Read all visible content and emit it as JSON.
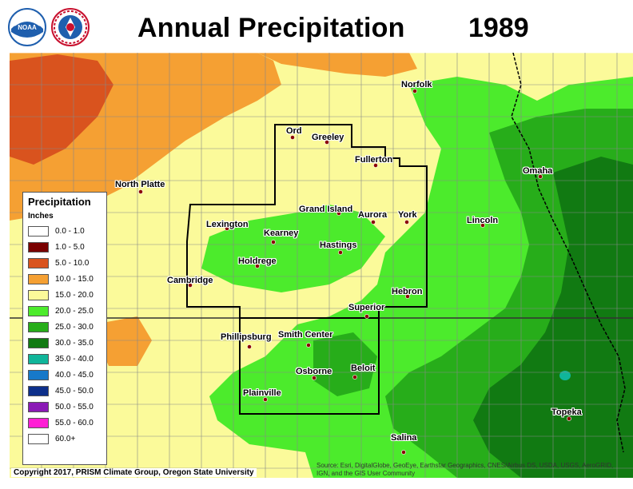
{
  "header": {
    "title": "Annual Precipitation",
    "year": "1989"
  },
  "logos": [
    {
      "name": "noaa-logo",
      "text": "NOAA",
      "color": "#1f5fae"
    },
    {
      "name": "nws-logo",
      "text": "NATIONAL WEATHER SERVICE",
      "color": "#c8102e"
    }
  ],
  "legend": {
    "title": "Precipitation",
    "units": "Inches",
    "items": [
      {
        "label": "0.0 - 1.0",
        "color": "#ffffff"
      },
      {
        "label": "1.0 - 5.0",
        "color": "#7a0000"
      },
      {
        "label": "5.0 - 10.0",
        "color": "#d9531e"
      },
      {
        "label": "10.0 - 15.0",
        "color": "#f5a033"
      },
      {
        "label": "15.0 - 20.0",
        "color": "#fbfa9a"
      },
      {
        "label": "20.0 - 25.0",
        "color": "#4ceb2c"
      },
      {
        "label": "25.0 - 30.0",
        "color": "#27ad1a"
      },
      {
        "label": "30.0 - 35.0",
        "color": "#117a12"
      },
      {
        "label": "35.0 - 40.0",
        "color": "#10b59a"
      },
      {
        "label": "40.0 - 45.0",
        "color": "#1779c9"
      },
      {
        "label": "45.0 - 50.0",
        "color": "#0d2f8a"
      },
      {
        "label": "50.0 - 55.0",
        "color": "#8a1ab6"
      },
      {
        "label": "55.0 - 60.0",
        "color": "#ff1fd5"
      },
      {
        "label": "60.0+",
        "color": "#ffffff"
      }
    ]
  },
  "cities": [
    {
      "name": "Norfolk"
    },
    {
      "name": "Ord"
    },
    {
      "name": "Greeley"
    },
    {
      "name": "Fullerton"
    },
    {
      "name": "Omaha"
    },
    {
      "name": "North Platte"
    },
    {
      "name": "Grand Island"
    },
    {
      "name": "Aurora"
    },
    {
      "name": "York"
    },
    {
      "name": "Lincoln"
    },
    {
      "name": "Lexington"
    },
    {
      "name": "Kearney"
    },
    {
      "name": "Hastings"
    },
    {
      "name": "Holdrege"
    },
    {
      "name": "Cambridge"
    },
    {
      "name": "Hebron"
    },
    {
      "name": "Superior"
    },
    {
      "name": "Phillipsburg"
    },
    {
      "name": "Smith Center"
    },
    {
      "name": "Osborne"
    },
    {
      "name": "Beloit"
    },
    {
      "name": "Plainville"
    },
    {
      "name": "Topeka"
    },
    {
      "name": "Salina"
    }
  ],
  "footer": {
    "copyright": "Copyright 2017, PRISM Climate Group, Oregon State University",
    "source": "Source: Esri, DigitalGlobe, GeoEye, Earthstar Geographics, CNES/Airbus DS, USDA, USGS, AeroGRID, IGN, and the GIS User Community"
  }
}
